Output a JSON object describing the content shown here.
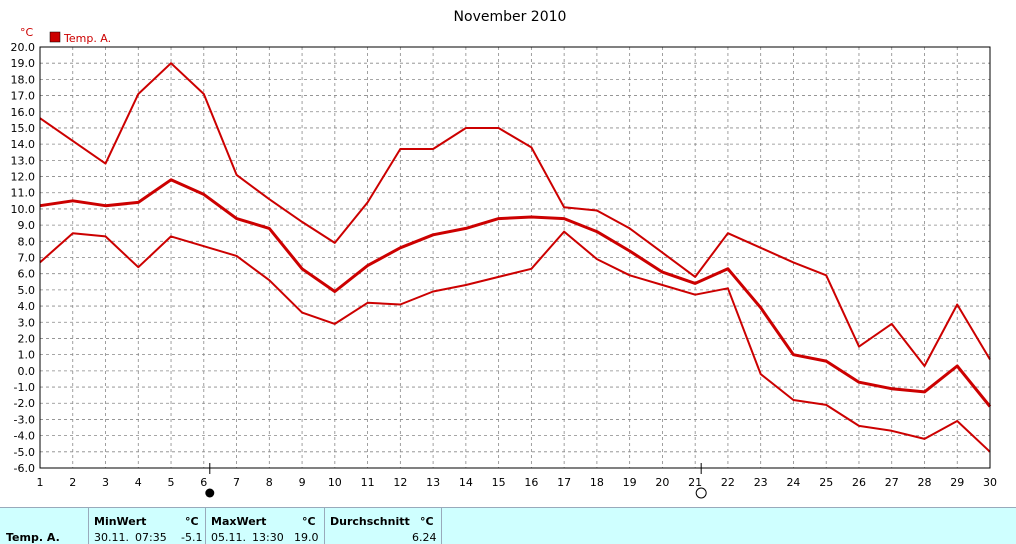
{
  "chart_data": {
    "type": "line",
    "title": "November 2010",
    "unit": "°C",
    "legend": [
      {
        "name": "Temp. A.",
        "color": "#cc0000"
      }
    ],
    "x": [
      1,
      2,
      3,
      4,
      5,
      6,
      7,
      8,
      9,
      10,
      11,
      12,
      13,
      14,
      15,
      16,
      17,
      18,
      19,
      20,
      21,
      22,
      23,
      24,
      25,
      26,
      27,
      28,
      29,
      30
    ],
    "ylim": [
      -6,
      20
    ],
    "ystep": 1,
    "grid": true,
    "series": [
      {
        "role": "max",
        "color": "#cc0000",
        "width": 2,
        "values": [
          15.6,
          14.2,
          12.8,
          17.1,
          19.0,
          17.1,
          12.1,
          10.6,
          9.2,
          7.9,
          10.4,
          13.7,
          13.7,
          15.0,
          15.0,
          13.8,
          10.1,
          9.9,
          8.8,
          7.3,
          5.8,
          8.5,
          7.6,
          6.7,
          5.9,
          1.5,
          2.9,
          0.3,
          4.1,
          0.7
        ]
      },
      {
        "role": "avg",
        "color": "#cc0000",
        "width": 3,
        "values": [
          10.2,
          10.5,
          10.2,
          10.4,
          11.8,
          10.9,
          9.4,
          8.8,
          6.3,
          4.9,
          6.5,
          7.6,
          8.4,
          8.8,
          9.4,
          9.5,
          9.4,
          8.6,
          7.4,
          6.1,
          5.4,
          6.3,
          3.9,
          1.0,
          0.6,
          -0.7,
          -1.1,
          -1.3,
          0.3,
          -2.2
        ]
      },
      {
        "role": "min",
        "color": "#cc0000",
        "width": 2,
        "values": [
          6.7,
          8.5,
          8.3,
          6.4,
          8.3,
          7.7,
          7.1,
          5.6,
          3.6,
          2.9,
          4.2,
          4.1,
          4.9,
          5.3,
          5.8,
          6.3,
          8.6,
          6.9,
          5.9,
          5.3,
          4.7,
          5.1,
          -0.2,
          -1.8,
          -2.1,
          -3.4,
          -3.7,
          -4.2,
          -3.1,
          -5.0
        ]
      }
    ],
    "moon_markers": [
      {
        "day": 6,
        "phase": "full",
        "symbol": "●"
      },
      {
        "day": 21,
        "phase": "new",
        "symbol": "○"
      }
    ]
  },
  "footer": {
    "series_label": "Temp. A.",
    "min": {
      "label": "MinWert",
      "unit": "°C",
      "date": "30.11.",
      "time": "07:35",
      "value": "-5.1"
    },
    "max": {
      "label": "MaxWert",
      "unit": "°C",
      "date": "05.11.",
      "time": "13:30",
      "value": "19.0"
    },
    "avg": {
      "label": "Durchschnitt",
      "unit": "°C",
      "value": "6.24"
    }
  }
}
